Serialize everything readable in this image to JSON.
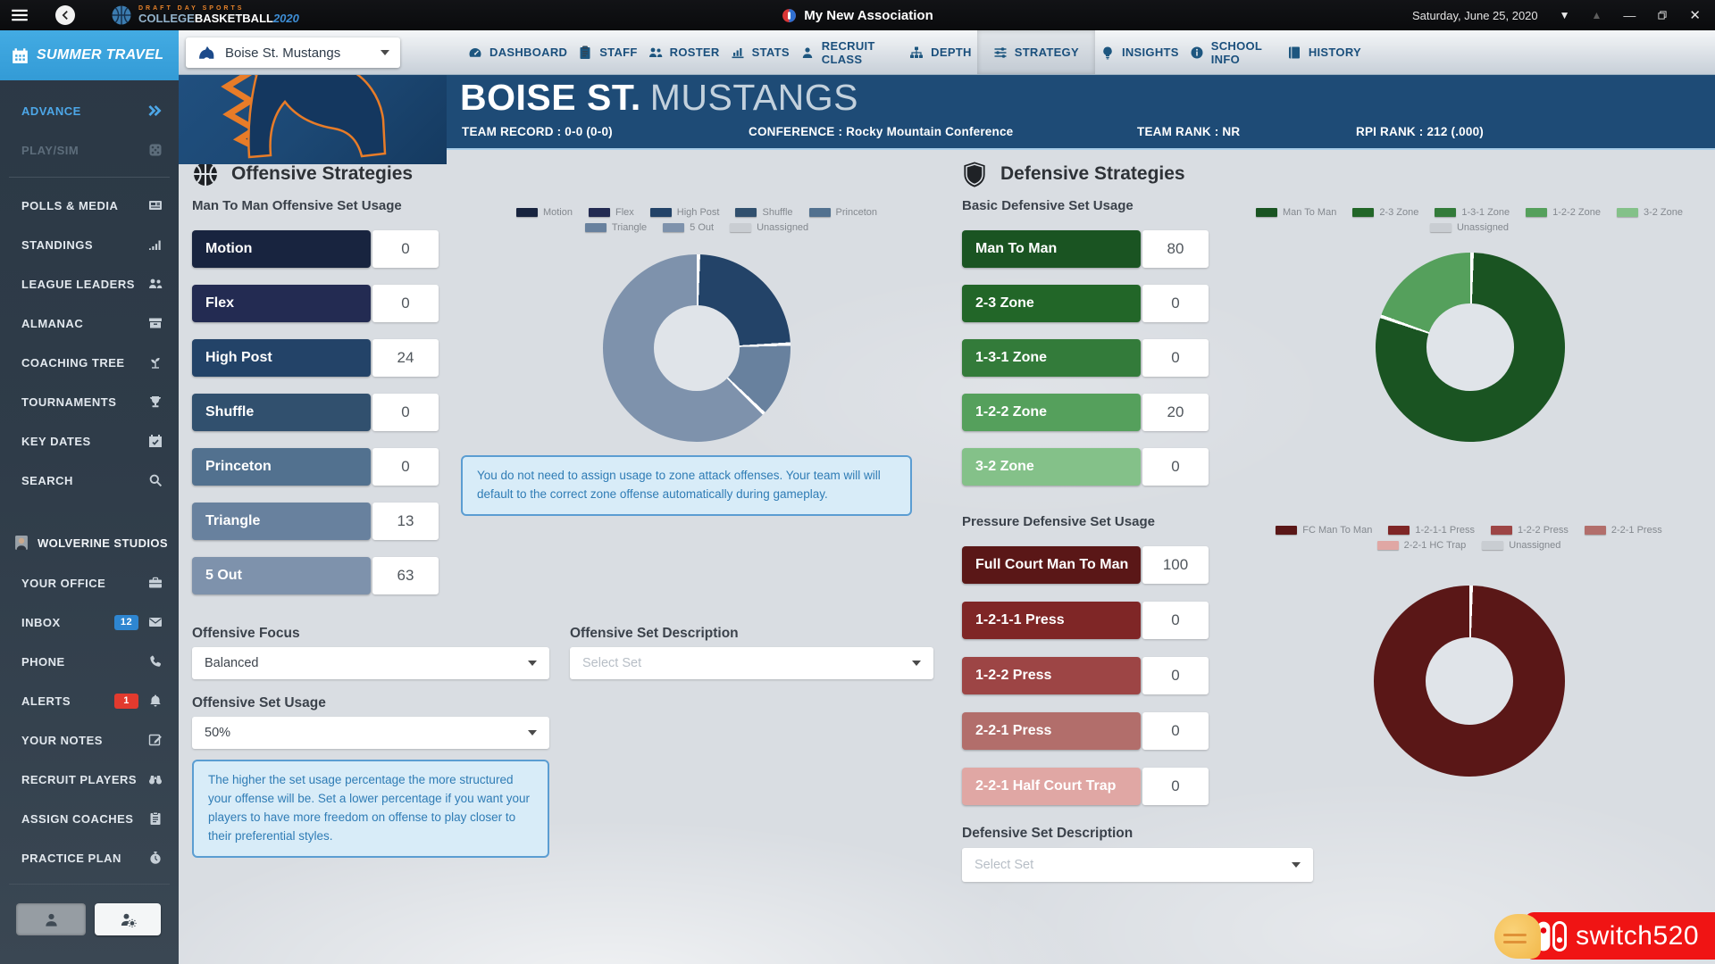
{
  "titlebar": {
    "logo": {
      "brand_top": "DRAFT DAY SPORTS",
      "brand_college": "COLLEGE",
      "brand_basketball": "BASKETBALL",
      "brand_year": "2020"
    },
    "app_title": "My New Association",
    "date": "Saturday, June 25, 2020"
  },
  "sidebar": {
    "header": {
      "label": "SUMMER TRAVEL",
      "icon": "calendar"
    },
    "primary_items": [
      {
        "label": "ADVANCE",
        "icon": "double-chevron",
        "state": "active"
      },
      {
        "label": "PLAY/SIM",
        "icon": "dice",
        "state": "disabled"
      }
    ],
    "nav_items": [
      {
        "label": "POLLS & MEDIA",
        "icon": "newspaper"
      },
      {
        "label": "STANDINGS",
        "icon": "signal-bars"
      },
      {
        "label": "LEAGUE LEADERS",
        "icon": "people"
      },
      {
        "label": "ALMANAC",
        "icon": "archive"
      },
      {
        "label": "COACHING TREE",
        "icon": "sprout"
      },
      {
        "label": "TOURNAMENTS",
        "icon": "trophy"
      },
      {
        "label": "KEY DATES",
        "icon": "calendar-check"
      },
      {
        "label": "SEARCH",
        "icon": "search"
      }
    ],
    "user": {
      "name": "WOLVERINE STUDIOS"
    },
    "user_items": [
      {
        "label": "YOUR OFFICE",
        "icon": "briefcase"
      },
      {
        "label": "INBOX",
        "icon": "envelope",
        "badge": "12",
        "badge_color": "#2e86d1"
      },
      {
        "label": "PHONE",
        "icon": "phone"
      },
      {
        "label": "ALERTS",
        "icon": "bell",
        "badge": "1",
        "badge_color": "#e23a2e"
      },
      {
        "label": "YOUR NOTES",
        "icon": "note-edit"
      },
      {
        "label": "RECRUIT PLAYERS",
        "icon": "binoculars"
      },
      {
        "label": "ASSIGN COACHES",
        "icon": "clipboard"
      },
      {
        "label": "PRACTICE PLAN",
        "icon": "stopwatch"
      }
    ]
  },
  "teambar": {
    "team_selector": "Boise St. Mustangs",
    "tabs": [
      {
        "label": "DASHBOARD",
        "icon": "gauge"
      },
      {
        "label": "STAFF",
        "icon": "clipboard"
      },
      {
        "label": "ROSTER",
        "icon": "people"
      },
      {
        "label": "STATS",
        "icon": "chart-bars"
      },
      {
        "label": "RECRUIT CLASS",
        "icon": "person"
      },
      {
        "label": "DEPTH",
        "icon": "org"
      },
      {
        "label": "STRATEGY",
        "icon": "sliders",
        "active": true
      },
      {
        "label": "INSIGHTS",
        "icon": "bulb"
      },
      {
        "label": "SCHOOL INFO",
        "icon": "info"
      },
      {
        "label": "HISTORY",
        "icon": "book"
      }
    ]
  },
  "team_header": {
    "name_bold": "BOISE ST.",
    "name_light": "MUSTANGS",
    "record": "TEAM RECORD : 0-0 (0-0)",
    "conference": "CONFERENCE : Rocky Mountain Conference",
    "team_rank": "TEAM RANK : NR",
    "rpi_rank": "RPI RANK : 212 (.000)"
  },
  "offense": {
    "section_title": "Offensive Strategies",
    "usage_label": "Man To Man Offensive Set Usage",
    "sets": [
      {
        "label": "Motion",
        "value": "0",
        "color": "#18243f"
      },
      {
        "label": "Flex",
        "value": "0",
        "color": "#232b52"
      },
      {
        "label": "High Post",
        "value": "24",
        "color": "#234368"
      },
      {
        "label": "Shuffle",
        "value": "0",
        "color": "#31506e"
      },
      {
        "label": "Princeton",
        "value": "0",
        "color": "#52718f"
      },
      {
        "label": "Triangle",
        "value": "13",
        "color": "#68819e"
      },
      {
        "label": "5 Out",
        "value": "63",
        "color": "#7e92ac"
      }
    ],
    "zone_note": "You do not need to assign usage to zone attack offenses. Your team will will default to the correct zone offense automatically during gameplay.",
    "focus_label": "Offensive Focus",
    "focus_value": "Balanced",
    "desc_label": "Offensive Set Description",
    "desc_placeholder": "Select Set",
    "set_usage_label": "Offensive Set Usage",
    "set_usage_value": "50%",
    "usage_note": "The higher the set usage percentage the more structured your offense will be. Set a lower percentage if you want your players to have more freedom on offense to play closer to their preferential styles."
  },
  "defense": {
    "section_title": "Defensive Strategies",
    "basic_label": "Basic Defensive Set Usage",
    "basic_sets": [
      {
        "label": "Man To Man",
        "value": "80",
        "color": "#1a5422"
      },
      {
        "label": "2-3 Zone",
        "value": "0",
        "color": "#226628"
      },
      {
        "label": "1-3-1 Zone",
        "value": "0",
        "color": "#337b3a"
      },
      {
        "label": "1-2-2 Zone",
        "value": "20",
        "color": "#55a05c"
      },
      {
        "label": "3-2 Zone",
        "value": "0",
        "color": "#84c189"
      }
    ],
    "pressure_label": "Pressure Defensive Set Usage",
    "pressure_sets": [
      {
        "label": "Full Court Man To Man",
        "value": "100",
        "color": "#5a1717"
      },
      {
        "label": "1-2-1-1 Press",
        "value": "0",
        "color": "#7f2626"
      },
      {
        "label": "1-2-2 Press",
        "value": "0",
        "color": "#9d4545"
      },
      {
        "label": "2-2-1 Press",
        "value": "0",
        "color": "#b26e6b"
      },
      {
        "label": "2-2-1 Half Court Trap",
        "value": "0",
        "color": "#e0a7a4"
      }
    ],
    "desc_label": "Defensive Set Description",
    "desc_placeholder": "Select Set"
  },
  "watermark": {
    "text": "switch520"
  },
  "chart_data": [
    {
      "type": "pie",
      "name": "offensive-set-usage-donut",
      "title": "Man To Man Offensive Set Usage",
      "categories": [
        "Motion",
        "Flex",
        "High Post",
        "Shuffle",
        "Princeton",
        "Triangle",
        "5 Out",
        "Unassigned"
      ],
      "values": [
        0,
        0,
        24,
        0,
        0,
        13,
        63,
        0
      ],
      "colors": [
        "#18243f",
        "#232b52",
        "#234368",
        "#31506e",
        "#52718f",
        "#68819e",
        "#7e92ac",
        "#c9cdd2"
      ],
      "legend_position": "top"
    },
    {
      "type": "pie",
      "name": "basic-defensive-set-usage-donut",
      "title": "Basic Defensive Set Usage",
      "categories": [
        "Man To Man",
        "2-3 Zone",
        "1-3-1 Zone",
        "1-2-2 Zone",
        "3-2 Zone",
        "Unassigned"
      ],
      "values": [
        80,
        0,
        0,
        20,
        0,
        0
      ],
      "colors": [
        "#1a5422",
        "#226628",
        "#337b3a",
        "#55a05c",
        "#84c189",
        "#c9cdd2"
      ],
      "legend_position": "top"
    },
    {
      "type": "pie",
      "name": "pressure-defensive-set-usage-donut",
      "title": "Pressure Defensive Set Usage",
      "categories": [
        "FC Man To Man",
        "1-2-1-1 Press",
        "1-2-2 Press",
        "2-2-1 Press",
        "2-2-1 HC Trap",
        "Unassigned"
      ],
      "values": [
        100,
        0,
        0,
        0,
        0,
        0
      ],
      "colors": [
        "#5a1717",
        "#7f2626",
        "#9d4545",
        "#b26e6b",
        "#e0a7a4",
        "#c9cdd2"
      ],
      "legend_position": "top"
    }
  ]
}
